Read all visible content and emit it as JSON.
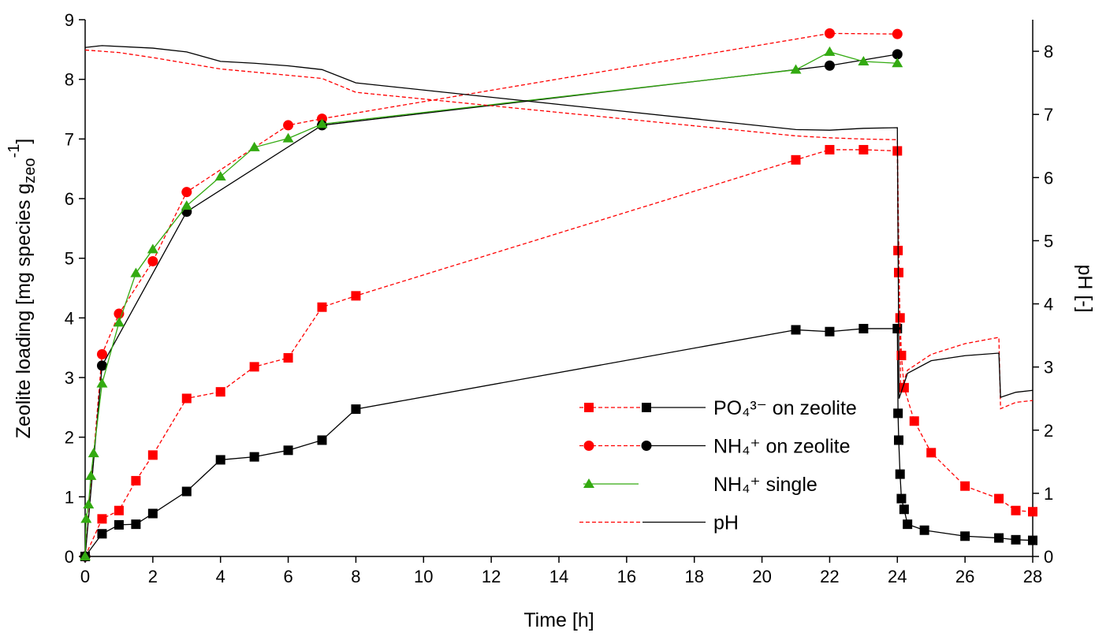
{
  "chart_data": {
    "type": "line",
    "xlabel": "Time [h]",
    "ylabel": [
      "Zeolite loading [mg species g",
      "zeo",
      "-1",
      "]"
    ],
    "y2label": "pH [-]",
    "xlim": [
      0,
      28
    ],
    "xticks": [
      0,
      2,
      4,
      6,
      8,
      10,
      12,
      14,
      16,
      18,
      20,
      22,
      24,
      26,
      28
    ],
    "ylim": [
      0,
      9
    ],
    "yticks": [
      0,
      1,
      2,
      3,
      4,
      5,
      6,
      7,
      8,
      9
    ],
    "y2lim": [
      0,
      8.5
    ],
    "y2ticks": [
      0,
      1,
      2,
      3,
      4,
      5,
      6,
      7,
      8
    ],
    "legend": "lower right",
    "series": [
      {
        "name": "PO₄³⁻ on zeolite",
        "marker": "square",
        "runs": [
          {
            "color": "#ff0000",
            "dash": true,
            "x": [
              0,
              0.5,
              1,
              1.5,
              2,
              3,
              4,
              5,
              6,
              7,
              8,
              21,
              22,
              23,
              24,
              24.02,
              24.04,
              24.08,
              24.12,
              24.2,
              24.5,
              25,
              26,
              27,
              27.5,
              28
            ],
            "values": [
              0,
              0.63,
              0.77,
              1.27,
              1.7,
              2.65,
              2.76,
              3.18,
              3.33,
              4.18,
              4.37,
              6.65,
              6.82,
              6.82,
              6.8,
              5.13,
              4.76,
              4.0,
              3.37,
              2.83,
              2.27,
              1.74,
              1.18,
              0.97,
              0.77,
              0.75
            ]
          },
          {
            "color": "#000000",
            "dash": false,
            "x": [
              0,
              0.5,
              1,
              1.5,
              2,
              3,
              4,
              5,
              6,
              7,
              8,
              21,
              22,
              23,
              24,
              24.02,
              24.04,
              24.08,
              24.12,
              24.2,
              24.3,
              24.8,
              26,
              27,
              27.5,
              28
            ],
            "values": [
              0,
              0.38,
              0.53,
              0.54,
              0.72,
              1.09,
              1.62,
              1.67,
              1.78,
              1.95,
              2.47,
              3.8,
              3.77,
              3.82,
              3.82,
              2.4,
              1.95,
              1.38,
              0.97,
              0.79,
              0.54,
              0.44,
              0.34,
              0.31,
              0.28,
              0.27
            ]
          }
        ]
      },
      {
        "name": "NH₄⁺ on zeolite",
        "marker": "circle",
        "runs": [
          {
            "color": "#ff0000",
            "dash": true,
            "x": [
              0,
              0.5,
              1,
              2,
              3,
              6,
              7,
              22,
              24
            ],
            "values": [
              0,
              3.39,
              4.07,
              4.95,
              6.11,
              7.23,
              7.34,
              8.77,
              8.76
            ]
          },
          {
            "color": "#000000",
            "dash": false,
            "x": [
              0,
              0.5,
              3,
              7,
              22,
              24
            ],
            "values": [
              0,
              3.2,
              5.78,
              7.23,
              8.23,
              8.42
            ]
          }
        ]
      },
      {
        "name": "NH₄⁺ single",
        "marker": "triangle",
        "runs": [
          {
            "color": "#33aa11",
            "dash": false,
            "x": [
              0,
              0.03,
              0.1,
              0.17,
              0.25,
              0.5,
              1,
              1.5,
              2,
              3,
              4,
              5,
              6,
              7,
              21,
              22,
              23,
              24
            ],
            "values": [
              0,
              0.63,
              0.87,
              1.35,
              1.73,
              2.9,
              3.92,
              4.75,
              5.15,
              5.88,
              6.37,
              6.86,
              7.01,
              7.25,
              8.16,
              8.46,
              8.3,
              8.27
            ]
          }
        ]
      },
      {
        "name": "pH",
        "marker": "none",
        "axis": "y2",
        "runs": [
          {
            "color": "#ff0000",
            "dash": true,
            "x": [
              0,
              1,
              2,
              3,
              4,
              5,
              6,
              7,
              8,
              21,
              22,
              23,
              24,
              24.1,
              24.3,
              25,
              26,
              27,
              27.05,
              27.5,
              28
            ],
            "values": [
              8.02,
              7.98,
              7.9,
              7.81,
              7.72,
              7.67,
              7.62,
              7.57,
              7.35,
              6.66,
              6.63,
              6.61,
              6.6,
              2.62,
              2.95,
              3.2,
              3.37,
              3.47,
              2.34,
              2.44,
              2.47
            ]
          },
          {
            "color": "#000000",
            "dash": false,
            "x": [
              0,
              0.5,
              2,
              3,
              4,
              5,
              6,
              7,
              8,
              21,
              22,
              23,
              24,
              24.05,
              24.3,
              25,
              26,
              27,
              27.05,
              27.5,
              28
            ],
            "values": [
              8.06,
              8.09,
              8.05,
              7.99,
              7.84,
              7.81,
              7.77,
              7.71,
              7.5,
              6.76,
              6.75,
              6.78,
              6.79,
              2.5,
              2.9,
              3.1,
              3.18,
              3.22,
              2.52,
              2.6,
              2.63
            ]
          }
        ]
      }
    ]
  }
}
